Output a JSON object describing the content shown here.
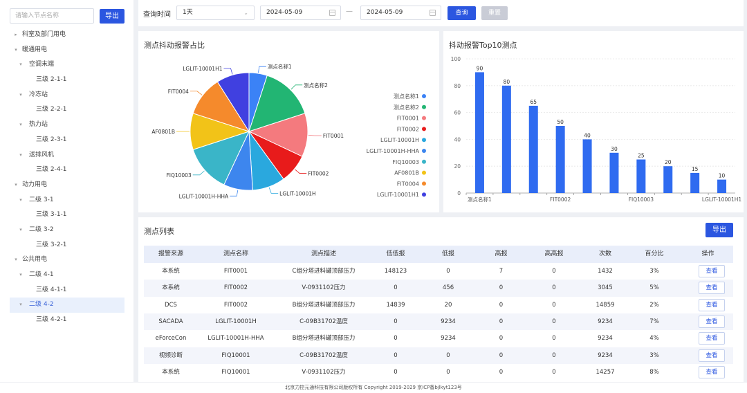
{
  "sidebar": {
    "search_placeholder": "请输入节点名称",
    "export_label": "导出",
    "tree": [
      {
        "label": "科室及部门用电",
        "level": 0,
        "arrow": "▸",
        "active": false
      },
      {
        "label": "暖通用电",
        "level": 0,
        "arrow": "▾",
        "active": false
      },
      {
        "label": "空调末端",
        "level": 1,
        "arrow": "▾",
        "active": false
      },
      {
        "label": "三级 2-1-1",
        "level": 2,
        "arrow": "",
        "active": false
      },
      {
        "label": "冷冻站",
        "level": 1,
        "arrow": "▾",
        "active": false
      },
      {
        "label": "三级 2-2-1",
        "level": 2,
        "arrow": "",
        "active": false
      },
      {
        "label": "热力站",
        "level": 1,
        "arrow": "▾",
        "active": false
      },
      {
        "label": "三级 2-3-1",
        "level": 2,
        "arrow": "",
        "active": false
      },
      {
        "label": "送排风机",
        "level": 1,
        "arrow": "▾",
        "active": false
      },
      {
        "label": "三级 2-4-1",
        "level": 2,
        "arrow": "",
        "active": false
      },
      {
        "label": "动力用电",
        "level": 0,
        "arrow": "▾",
        "active": false
      },
      {
        "label": "二级 3-1",
        "level": 1,
        "arrow": "▾",
        "active": false
      },
      {
        "label": "三级 3-1-1",
        "level": 2,
        "arrow": "",
        "active": false
      },
      {
        "label": "二级 3-2",
        "level": 1,
        "arrow": "▾",
        "active": false
      },
      {
        "label": "三级 3-2-1",
        "level": 2,
        "arrow": "",
        "active": false
      },
      {
        "label": "公共用电",
        "level": 0,
        "arrow": "▾",
        "active": false
      },
      {
        "label": "二级 4-1",
        "level": 1,
        "arrow": "▾",
        "active": false
      },
      {
        "label": "三级 4-1-1",
        "level": 2,
        "arrow": "",
        "active": false
      },
      {
        "label": "二级 4-2",
        "level": 1,
        "arrow": "▾",
        "active": true
      },
      {
        "label": "三级 4-2-1",
        "level": 2,
        "arrow": "",
        "active": false
      }
    ]
  },
  "filter": {
    "time_label": "查询时间",
    "period_value": "1天",
    "start_date": "2024-05-09",
    "end_date": "2024-05-09",
    "separator": "—",
    "query_label": "查询",
    "reset_label": "重置"
  },
  "pie_panel": {
    "title": "测点抖动报警占比"
  },
  "bar_panel": {
    "title": "抖动报警Top10测点"
  },
  "chart_data": [
    {
      "type": "pie",
      "title": "测点抖动报警占比",
      "labels": [
        "测点名称1",
        "测点名称2",
        "FIT0001",
        "FIT0002",
        "LGLIT-10001H",
        "LGLIT-10001H-HHA",
        "FIQ10003",
        "AF0801B",
        "FIT0004",
        "LGLIT-10001H1"
      ],
      "values": [
        5,
        15,
        12,
        8,
        9,
        8,
        13,
        10,
        11,
        9
      ],
      "colors": [
        "#3b82f6",
        "#22b573",
        "#f47a7e",
        "#e81b1b",
        "#2aa8de",
        "#3d86ee",
        "#3ab5c8",
        "#f2c318",
        "#f58a2c",
        "#4040e0"
      ],
      "legend_position": "right"
    },
    {
      "type": "bar",
      "title": "抖动报警Top10测点",
      "categories": [
        "测点名称1",
        "测点名称2",
        "FIT0001",
        "FIT0002",
        "LGLIT-10001H",
        "LGLIT-10001H-HHA",
        "FIQ10003",
        "AF0801B",
        "FIT0004",
        "LGLIT-10001H1"
      ],
      "shown_tick_labels": [
        "测点名称1",
        "FIT0002",
        "FIQ10003",
        "LGLIT-10001H1"
      ],
      "values": [
        90,
        80,
        65,
        50,
        40,
        30,
        25,
        20,
        15,
        10
      ],
      "ylim": [
        0,
        100
      ],
      "yticks": [
        0,
        20,
        40,
        60,
        80,
        100
      ],
      "color": "#2f6bf0",
      "grid": true,
      "data_labels": true
    }
  ],
  "table": {
    "title": "测点列表",
    "export_label": "导出",
    "headers": [
      "报警来源",
      "测点名称",
      "测点描述",
      "低低报",
      "低报",
      "高报",
      "高高报",
      "次数",
      "百分比",
      "操作"
    ],
    "view_label": "查看",
    "rows": [
      [
        "本系统",
        "FIT0001",
        "C组分塔进料罐顶部压力",
        "148123",
        "0",
        "7",
        "0",
        "1432",
        "3%"
      ],
      [
        "本系统",
        "FIT0002",
        "V-0931102压力",
        "0",
        "456",
        "0",
        "0",
        "3045",
        "5%"
      ],
      [
        "DCS",
        "FIT0002",
        "B组分塔进料罐顶部压力",
        "14839",
        "20",
        "0",
        "0",
        "14859",
        "2%"
      ],
      [
        "SACADA",
        "LGLIT-10001H",
        "C-09B31702温度",
        "0",
        "9234",
        "0",
        "0",
        "9234",
        "7%"
      ],
      [
        "eForceCon",
        "LGLIT-10001H-HHA",
        "B组分塔进料罐顶部压力",
        "0",
        "9234",
        "0",
        "0",
        "9234",
        "4%"
      ],
      [
        "视频诊断",
        "FIQ10001",
        "C-09B31702温度",
        "0",
        "0",
        "0",
        "0",
        "9234",
        "3%"
      ],
      [
        "本系统",
        "FIQ10001",
        "V-0931102压力",
        "0",
        "0",
        "0",
        "0",
        "14257",
        "8%"
      ]
    ]
  },
  "footer": {
    "text": "北京力控元通科技有限公司版权所有 Copyright 2019-2029 京ICP备bjlkyt123号"
  }
}
